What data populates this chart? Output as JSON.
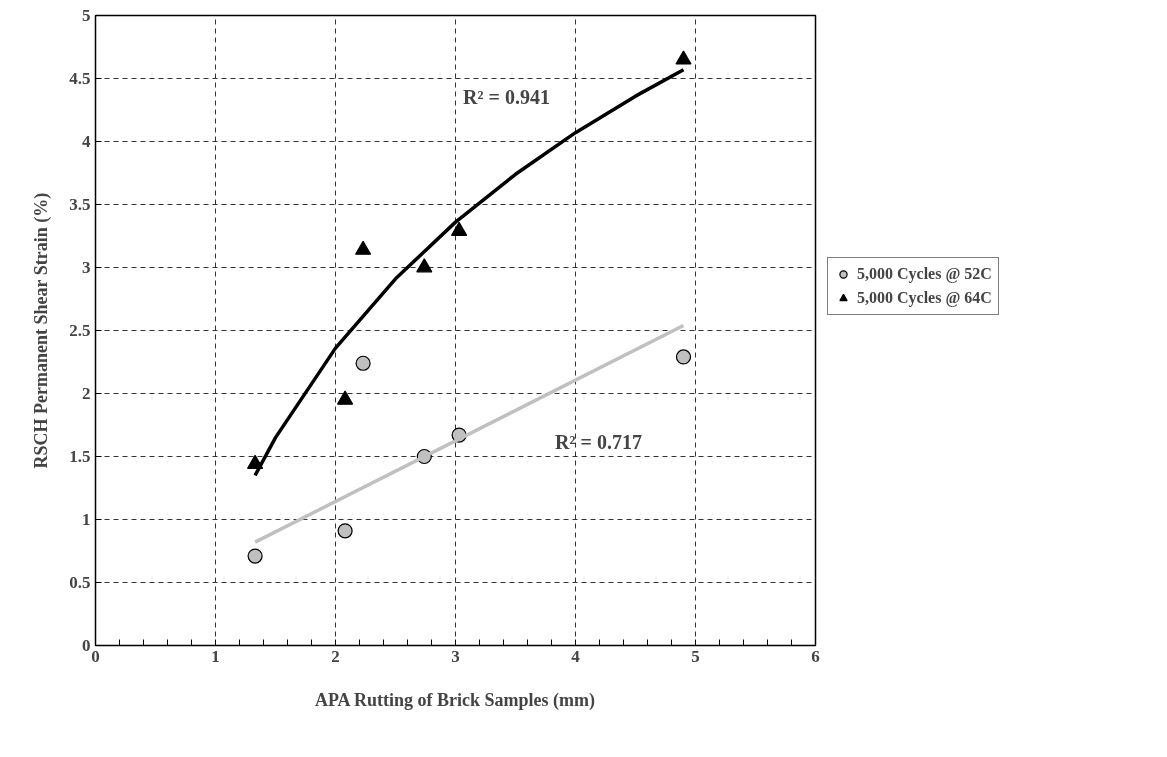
{
  "chart_data": {
    "type": "scatter",
    "xlabel": "APA Rutting of Brick Samples (mm)",
    "ylabel": "RSCH Permanent Shear Strain (%)",
    "xlim": [
      0,
      6
    ],
    "xticks": [
      0,
      1,
      2,
      3,
      4,
      5,
      6
    ],
    "ylim": [
      0,
      5
    ],
    "yticks": [
      0,
      0.5,
      1,
      1.5,
      2,
      2.5,
      3,
      3.5,
      4,
      4.5,
      5
    ],
    "grid": true,
    "legend": "right",
    "series": [
      {
        "name": "5,000 Cycles @ 52C",
        "color": "#c0c0c0",
        "marker": "circle",
        "x": [
          1.33,
          2.08,
          2.23,
          2.74,
          3.03,
          4.9
        ],
        "values": [
          0.71,
          0.91,
          2.24,
          1.5,
          1.67,
          2.29
        ]
      },
      {
        "name": "5,000 Cycles @ 64C",
        "color": "#000000",
        "marker": "triangle",
        "x": [
          1.33,
          2.08,
          2.23,
          2.74,
          3.03,
          4.9
        ],
        "values": [
          1.44,
          1.95,
          3.14,
          3.0,
          3.29,
          4.65
        ]
      },
      {
        "type": "line",
        "color": "#c0c0c0",
        "x": [
          1.33,
          4.9
        ],
        "values": [
          0.82,
          2.54
        ]
      },
      {
        "type": "line",
        "color": "#000000",
        "x": [
          1.33,
          1.5,
          2,
          2.5,
          3,
          3.5,
          4,
          4.5,
          4.9
        ],
        "values": [
          1.35,
          1.65,
          2.36,
          2.91,
          3.36,
          3.74,
          4.07,
          4.36,
          4.57
        ]
      }
    ],
    "annotations": [
      "R² = 0.941",
      "R² = 0.717"
    ]
  }
}
